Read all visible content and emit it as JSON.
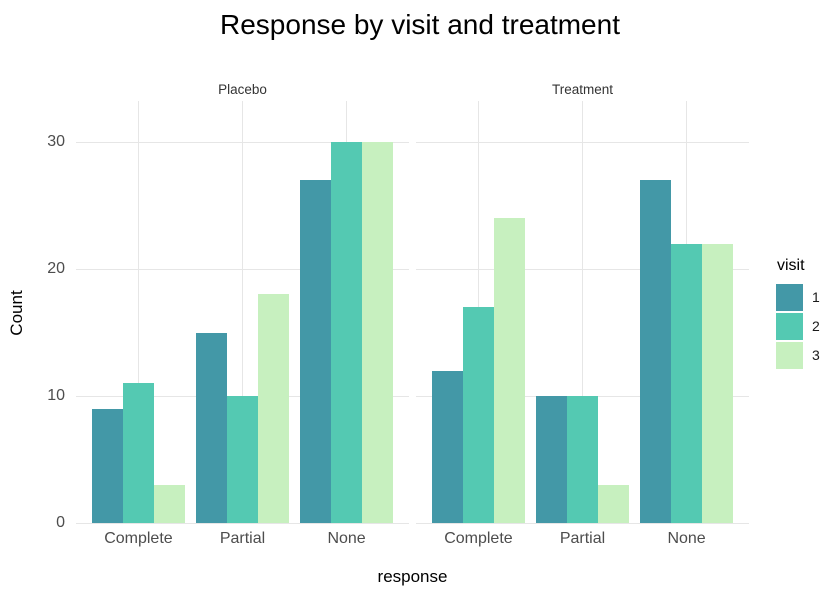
{
  "chart_data": {
    "type": "bar",
    "title": "Response by visit and treatment",
    "xlabel": "response",
    "ylabel": "Count",
    "categories": [
      "Complete",
      "Partial",
      "None"
    ],
    "facets": [
      {
        "label": "Placebo",
        "series": [
          {
            "name": "1",
            "values": [
              9,
              15,
              27
            ]
          },
          {
            "name": "2",
            "values": [
              11,
              10,
              30
            ]
          },
          {
            "name": "3",
            "values": [
              3,
              18,
              30
            ]
          }
        ]
      },
      {
        "label": "Treatment",
        "series": [
          {
            "name": "1",
            "values": [
              12,
              10,
              27
            ]
          },
          {
            "name": "2",
            "values": [
              17,
              10,
              22
            ]
          },
          {
            "name": "3",
            "values": [
              24,
              3,
              22
            ]
          }
        ]
      }
    ],
    "legend_title": "visit",
    "legend": [
      {
        "label": "1",
        "color": "#4398a7"
      },
      {
        "label": "2",
        "color": "#54c9b2"
      },
      {
        "label": "3",
        "color": "#c7f0bf"
      }
    ],
    "ylim": [
      0,
      30
    ],
    "yticks": [
      0,
      10,
      20,
      30
    ],
    "grid": true,
    "legend_position": "right",
    "colors": {
      "grid": "#e6e6e6",
      "axis_text": "#4d4d4d",
      "title_text": "#000000"
    }
  }
}
